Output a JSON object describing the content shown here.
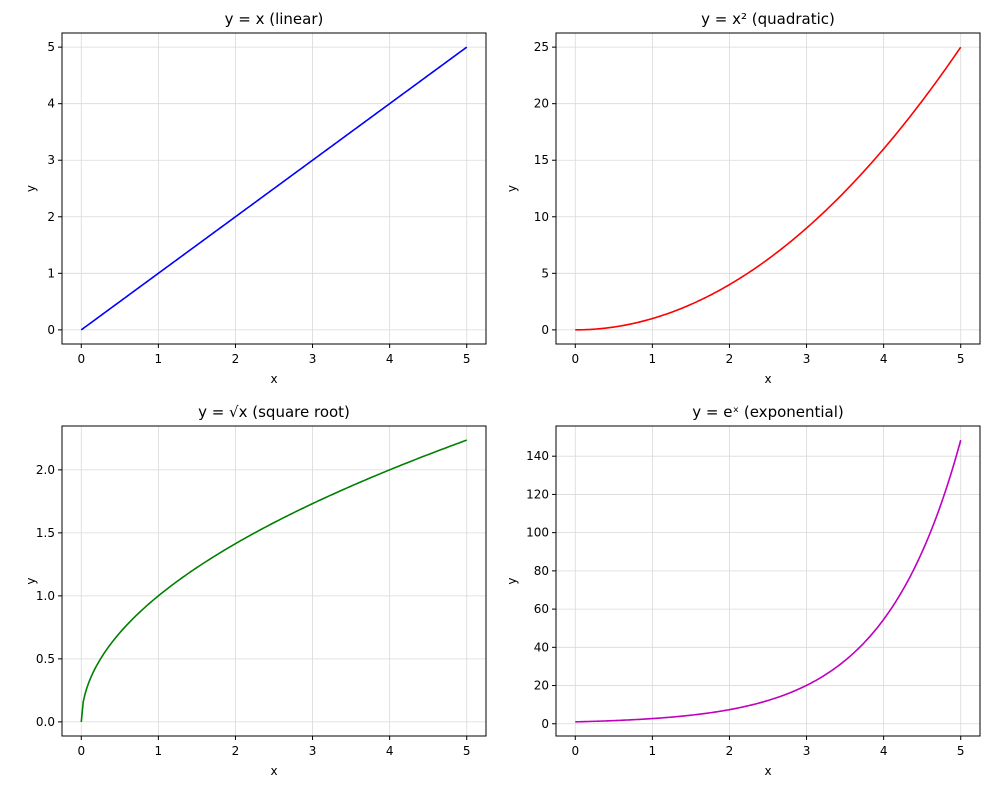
{
  "chart_data": [
    {
      "type": "line",
      "title": "y = x (linear)",
      "xlabel": "x",
      "ylabel": "y",
      "xlim": [
        -0.25,
        5.25
      ],
      "ylim": [
        -0.25,
        5.25
      ],
      "xticks": [
        0,
        1,
        2,
        3,
        4,
        5
      ],
      "yticks": [
        0,
        1,
        2,
        3,
        4,
        5
      ],
      "grid": true,
      "color": "#0000ff",
      "function": "linear",
      "x": [
        0,
        0.5,
        1,
        1.5,
        2,
        2.5,
        3,
        3.5,
        4,
        4.5,
        5
      ],
      "y": [
        0,
        0.5,
        1,
        1.5,
        2,
        2.5,
        3,
        3.5,
        4,
        4.5,
        5
      ]
    },
    {
      "type": "line",
      "title": "y = x² (quadratic)",
      "xlabel": "x",
      "ylabel": "y",
      "xlim": [
        -0.25,
        5.25
      ],
      "ylim": [
        -1.25,
        26.25
      ],
      "xticks": [
        0,
        1,
        2,
        3,
        4,
        5
      ],
      "yticks": [
        0,
        5,
        10,
        15,
        20,
        25
      ],
      "grid": true,
      "color": "#ff0000",
      "function": "quadratic",
      "x": [
        0,
        0.5,
        1,
        1.5,
        2,
        2.5,
        3,
        3.5,
        4,
        4.5,
        5
      ],
      "y": [
        0,
        0.25,
        1,
        2.25,
        4,
        6.25,
        9,
        12.25,
        16,
        20.25,
        25
      ]
    },
    {
      "type": "line",
      "title": "y = √x (square root)",
      "xlabel": "x",
      "ylabel": "y",
      "xlim": [
        -0.25,
        5.25
      ],
      "ylim": [
        -0.112,
        2.348
      ],
      "xticks": [
        0,
        1,
        2,
        3,
        4,
        5
      ],
      "yticks": [
        "0.0",
        "0.5",
        "1.0",
        "1.5",
        "2.0"
      ],
      "grid": true,
      "color": "#008000",
      "function": "sqrt",
      "x": [
        0,
        0.05,
        0.25,
        0.5,
        1,
        1.5,
        2,
        2.5,
        3,
        3.5,
        4,
        4.5,
        5
      ],
      "y": [
        0,
        0.224,
        0.5,
        0.707,
        1,
        1.225,
        1.414,
        1.581,
        1.732,
        1.871,
        2,
        2.121,
        2.236
      ]
    },
    {
      "type": "line",
      "title": "y = eˣ (exponential)",
      "xlabel": "x",
      "ylabel": "y",
      "xlim": [
        -0.25,
        5.25
      ],
      "ylim": [
        -6.4,
        155.8
      ],
      "xticks": [
        0,
        1,
        2,
        3,
        4,
        5
      ],
      "yticks": [
        0,
        20,
        40,
        60,
        80,
        100,
        120,
        140
      ],
      "grid": true,
      "color": "#bf00bf",
      "function": "exp",
      "x": [
        0,
        0.5,
        1,
        1.5,
        2,
        2.5,
        3,
        3.5,
        4,
        4.5,
        5
      ],
      "y": [
        1,
        1.65,
        2.72,
        4.48,
        7.39,
        12.18,
        20.09,
        33.12,
        54.6,
        90.02,
        148.41
      ]
    }
  ]
}
